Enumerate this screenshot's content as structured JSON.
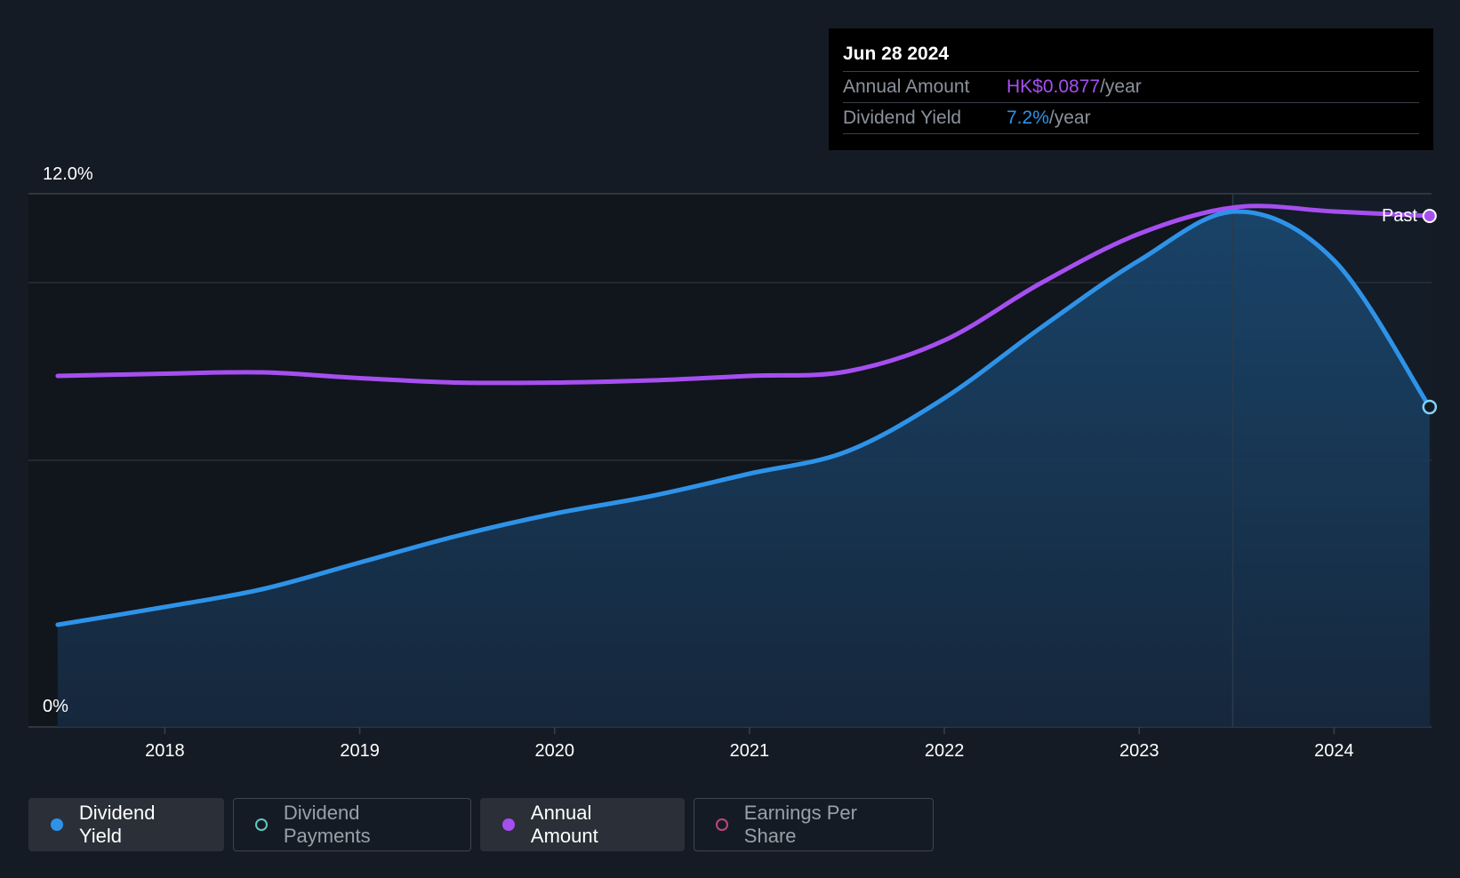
{
  "tooltip": {
    "date": "Jun 28 2024",
    "annual_amount_label": "Annual Amount",
    "annual_amount_value": "HK$0.0877",
    "annual_amount_unit": "/year",
    "dividend_yield_label": "Dividend Yield",
    "dividend_yield_value": "7.2%",
    "dividend_yield_unit": "/year"
  },
  "legend": {
    "items": [
      {
        "label": "Dividend Yield",
        "color": "#2e93e8",
        "active": true,
        "filled": true
      },
      {
        "label": "Dividend Payments",
        "color": "#5ec8c0",
        "active": false,
        "filled": false
      },
      {
        "label": "Annual Amount",
        "color": "#a64ff0",
        "active": true,
        "filled": true
      },
      {
        "label": "Earnings Per Share",
        "color": "#c0457a",
        "active": false,
        "filled": false
      }
    ]
  },
  "chart_data": {
    "type": "line",
    "x_ticks": [
      "2018",
      "2019",
      "2020",
      "2021",
      "2022",
      "2023",
      "2024"
    ],
    "y_tick_labels": [
      "12.0%",
      "0%"
    ],
    "ylim": [
      0,
      12
    ],
    "xlim": [
      2017.3,
      2024.5
    ],
    "past_label": "Past",
    "colors": {
      "yield": "#2e93e8",
      "amount": "#a64ff0",
      "background": "#151b24"
    },
    "series": [
      {
        "name": "Dividend Yield",
        "x": [
          2017.45,
          2018.0,
          2018.5,
          2019.0,
          2019.5,
          2020.0,
          2020.5,
          2021.0,
          2021.5,
          2022.0,
          2022.5,
          2023.0,
          2023.5,
          2024.0,
          2024.49
        ],
        "values": [
          2.3,
          2.7,
          3.1,
          3.7,
          4.3,
          4.8,
          5.2,
          5.7,
          6.2,
          7.4,
          9.0,
          10.5,
          11.6,
          10.5,
          7.2
        ]
      },
      {
        "name": "Annual Amount",
        "x": [
          2017.45,
          2018.0,
          2018.5,
          2019.0,
          2019.5,
          2020.0,
          2020.5,
          2021.0,
          2021.5,
          2022.0,
          2022.5,
          2023.0,
          2023.5,
          2024.0,
          2024.49
        ],
        "values": [
          7.9,
          7.95,
          7.98,
          7.85,
          7.75,
          7.75,
          7.8,
          7.9,
          8.0,
          8.7,
          10.0,
          11.1,
          11.7,
          11.6,
          11.5
        ]
      }
    ]
  }
}
